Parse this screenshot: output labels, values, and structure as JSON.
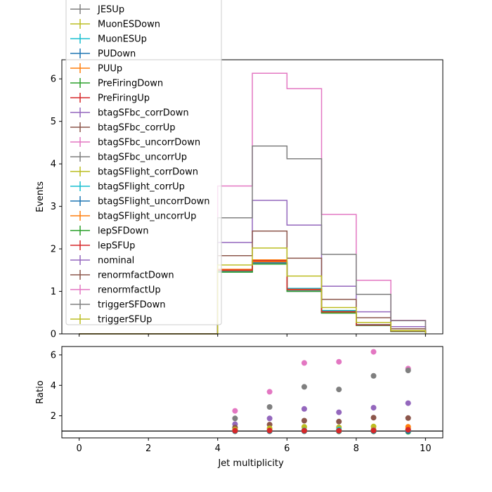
{
  "chart_data": [
    {
      "type": "line",
      "panel": "main",
      "ylabel": "Events",
      "xlim": [
        -0.5,
        10.5
      ],
      "ylim": [
        0,
        6.45
      ],
      "yticks": [
        0,
        1,
        2,
        3,
        4,
        5,
        6
      ],
      "bin_edges": [
        4,
        5,
        6,
        7,
        8,
        9,
        10
      ],
      "legend_placement": "upper-left",
      "series": [
        {
          "name": "JESUp",
          "color": "#7f7f7f",
          "values": [
            1.47,
            1.66,
            1.02,
            0.5,
            0.21,
            0.06
          ]
        },
        {
          "name": "MuonESDown",
          "color": "#bcbd22",
          "values": [
            1.46,
            1.65,
            1.01,
            0.49,
            0.2,
            0.06
          ]
        },
        {
          "name": "MuonESUp",
          "color": "#17becf",
          "values": [
            1.48,
            1.68,
            1.05,
            0.52,
            0.21,
            0.07
          ]
        },
        {
          "name": "PUDown",
          "color": "#1f77b4",
          "values": [
            1.47,
            1.67,
            1.03,
            0.51,
            0.2,
            0.06
          ]
        },
        {
          "name": "PUUp",
          "color": "#ff7f0e",
          "values": [
            1.52,
            1.74,
            1.06,
            0.52,
            0.22,
            0.07
          ]
        },
        {
          "name": "PreFiringDown",
          "color": "#2ca02c",
          "values": [
            1.46,
            1.66,
            1.02,
            0.5,
            0.2,
            0.06
          ]
        },
        {
          "name": "PreFiringUp",
          "color": "#d62728",
          "values": [
            1.49,
            1.7,
            1.04,
            0.51,
            0.21,
            0.07
          ]
        },
        {
          "name": "btagSFbc_corrDown",
          "color": "#9467bd",
          "values": [
            1.45,
            1.64,
            1.0,
            0.49,
            0.2,
            0.06
          ]
        },
        {
          "name": "btagSFbc_corrUp",
          "color": "#8c564b",
          "values": [
            1.5,
            1.72,
            1.06,
            0.53,
            0.22,
            0.07
          ]
        },
        {
          "name": "btagSFbc_uncorrDown",
          "color": "#e377c2",
          "values": [
            1.46,
            1.66,
            1.02,
            0.5,
            0.2,
            0.06
          ]
        },
        {
          "name": "btagSFbc_uncorrUp",
          "color": "#7f7f7f",
          "values": [
            1.48,
            1.69,
            1.04,
            0.51,
            0.21,
            0.07
          ]
        },
        {
          "name": "btagSFlight_corrDown",
          "color": "#bcbd22",
          "values": [
            1.47,
            1.67,
            1.03,
            0.5,
            0.21,
            0.06
          ]
        },
        {
          "name": "btagSFlight_corrUp",
          "color": "#17becf",
          "values": [
            1.49,
            1.71,
            1.07,
            0.55,
            0.22,
            0.07
          ]
        },
        {
          "name": "btagSFlight_uncorrDown",
          "color": "#1f77b4",
          "values": [
            1.47,
            1.67,
            1.03,
            0.5,
            0.2,
            0.06
          ]
        },
        {
          "name": "btagSFlight_uncorrUp",
          "color": "#ff7f0e",
          "values": [
            1.49,
            1.7,
            1.04,
            0.51,
            0.21,
            0.07
          ]
        },
        {
          "name": "lepSFDown",
          "color": "#2ca02c",
          "values": [
            1.45,
            1.64,
            1.0,
            0.49,
            0.2,
            0.06
          ]
        },
        {
          "name": "lepSFUp",
          "color": "#d62728",
          "values": [
            1.5,
            1.72,
            1.05,
            0.52,
            0.21,
            0.07
          ]
        },
        {
          "name": "nominal",
          "color": "#9467bd",
          "values": [
            2.15,
            3.14,
            2.56,
            1.12,
            0.52,
            0.17
          ]
        },
        {
          "name": "renormfactDown",
          "color": "#8c564b",
          "values": [
            1.84,
            2.42,
            1.78,
            0.81,
            0.38,
            0.12
          ]
        },
        {
          "name": "renormfactUp",
          "color": "#e377c2",
          "values": [
            3.48,
            6.13,
            5.77,
            2.81,
            1.26,
            0.32
          ]
        },
        {
          "name": "triggerSFDown",
          "color": "#7f7f7f",
          "values": [
            2.73,
            4.42,
            4.12,
            1.87,
            0.93,
            0.31
          ]
        },
        {
          "name": "triggerSFUp",
          "color": "#bcbd22",
          "values": [
            1.62,
            2.02,
            1.36,
            0.62,
            0.27,
            0.08
          ]
        }
      ]
    },
    {
      "type": "scatter",
      "panel": "ratio",
      "xlabel": "Jet multiplicity",
      "ylabel": "Ratio",
      "xlim": [
        -0.5,
        10.5
      ],
      "ylim": [
        0.55,
        6.55
      ],
      "xticks": [
        0,
        2,
        4,
        6,
        8,
        10
      ],
      "yticks": [
        2,
        4,
        6
      ],
      "reference_line": 1,
      "x": [
        4.5,
        5.5,
        6.5,
        7.5,
        8.5,
        9.5
      ],
      "series": [
        {
          "color": "#e377c2",
          "values": [
            2.32,
            3.58,
            5.47,
            5.55,
            6.2,
            5.1
          ]
        },
        {
          "color": "#7f7f7f",
          "values": [
            1.83,
            2.58,
            3.9,
            3.73,
            4.62,
            4.98
          ]
        },
        {
          "color": "#9467bd",
          "values": [
            1.45,
            1.83,
            2.45,
            2.23,
            2.53,
            2.83
          ]
        },
        {
          "color": "#8c564b",
          "values": [
            1.23,
            1.42,
            1.68,
            1.62,
            1.88,
            1.85
          ]
        },
        {
          "color": "#bcbd22",
          "values": [
            1.1,
            1.18,
            1.28,
            1.24,
            1.3,
            1.12
          ]
        },
        {
          "color": "#ff7f0e",
          "values": [
            1.03,
            1.05,
            1.04,
            1.03,
            1.08,
            1.28
          ]
        },
        {
          "color": "#17becf",
          "values": [
            1.01,
            1.02,
            1.05,
            1.1,
            1.05,
            1.02
          ]
        },
        {
          "color": "#2ca02c",
          "values": [
            0.99,
            0.99,
            0.99,
            0.98,
            0.98,
            0.95
          ]
        },
        {
          "color": "#1f77b4",
          "values": [
            1.0,
            1.0,
            1.0,
            1.0,
            1.0,
            1.0
          ]
        },
        {
          "color": "#d62728",
          "values": [
            1.02,
            1.03,
            1.02,
            1.02,
            1.03,
            1.08
          ]
        }
      ]
    }
  ]
}
